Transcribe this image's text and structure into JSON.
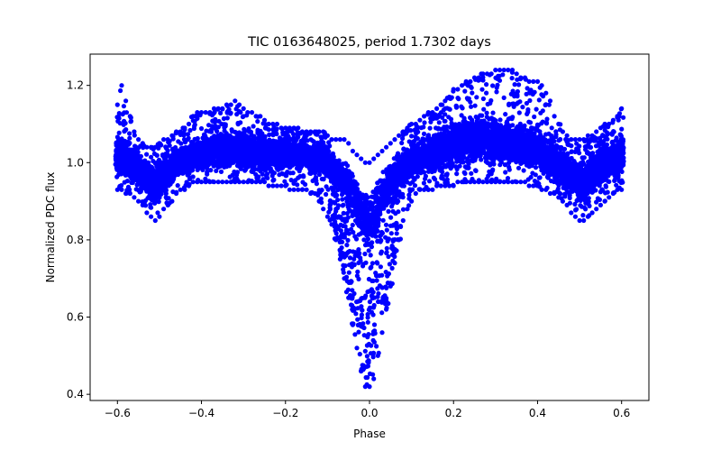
{
  "chart_data": {
    "type": "scatter",
    "title": "TIC 0163648025, period 1.7302 days",
    "xlabel": "Phase",
    "ylabel": "Normalized PDC flux",
    "xlim": [
      -0.665,
      0.665
    ],
    "ylim": [
      0.384,
      1.281
    ],
    "xticks": [
      -0.6,
      -0.4,
      -0.2,
      0.0,
      0.2,
      0.4,
      0.6
    ],
    "xtick_labels": [
      "−0.6",
      "−0.4",
      "−0.2",
      "0.0",
      "0.2",
      "0.4",
      "0.6"
    ],
    "yticks": [
      0.4,
      0.6,
      0.8,
      1.0,
      1.2
    ],
    "ytick_labels": [
      "0.4",
      "0.6",
      "0.8",
      "1.0",
      "1.2"
    ],
    "grid": false,
    "legend": "none",
    "marker_color": "#0000ff",
    "series": [
      {
        "x": [
          -0.6,
          -0.59,
          -0.58,
          -0.57,
          -0.56,
          -0.55,
          -0.54,
          -0.53,
          -0.52,
          -0.51,
          -0.5,
          -0.49,
          -0.48,
          -0.47,
          -0.46,
          -0.45,
          -0.44,
          -0.43,
          -0.42,
          -0.41,
          -0.4,
          -0.39,
          -0.38,
          -0.37,
          -0.36,
          -0.35,
          -0.34,
          -0.33,
          -0.32,
          -0.31,
          -0.3,
          -0.29,
          -0.28,
          -0.27,
          -0.26,
          -0.25,
          -0.24,
          -0.23,
          -0.22,
          -0.21,
          -0.2,
          -0.19,
          -0.18,
          -0.17,
          -0.16,
          -0.15,
          -0.14,
          -0.13,
          -0.12,
          -0.11,
          -0.1,
          -0.09,
          -0.08,
          -0.07,
          -0.06,
          -0.05,
          -0.04,
          -0.03,
          -0.02,
          -0.01,
          0.0,
          0.01,
          0.02,
          0.03,
          0.04,
          0.05,
          0.06,
          0.07,
          0.08,
          0.09,
          0.1,
          0.11,
          0.12,
          0.13,
          0.14,
          0.15,
          0.16,
          0.17,
          0.18,
          0.19,
          0.2,
          0.21,
          0.22,
          0.23,
          0.24,
          0.25,
          0.26,
          0.27,
          0.28,
          0.29,
          0.3,
          0.31,
          0.32,
          0.33,
          0.34,
          0.35,
          0.36,
          0.37,
          0.38,
          0.39,
          0.4,
          0.41,
          0.42,
          0.43,
          0.44,
          0.45,
          0.46,
          0.47,
          0.48,
          0.49,
          0.5,
          0.51,
          0.52,
          0.53,
          0.54,
          0.55,
          0.56,
          0.57,
          0.58,
          0.59,
          0.6
        ],
        "y_center": [
          1.02,
          1.02,
          1.01,
          1.0,
          0.99,
          0.98,
          0.97,
          0.96,
          0.95,
          0.95,
          0.96,
          0.97,
          0.98,
          0.99,
          1.0,
          1.0,
          1.01,
          1.01,
          1.02,
          1.02,
          1.02,
          1.03,
          1.03,
          1.03,
          1.03,
          1.03,
          1.03,
          1.03,
          1.03,
          1.03,
          1.03,
          1.03,
          1.03,
          1.03,
          1.03,
          1.03,
          1.02,
          1.02,
          1.02,
          1.02,
          1.02,
          1.02,
          1.02,
          1.02,
          1.02,
          1.02,
          1.01,
          1.01,
          1.01,
          1.01,
          1.0,
          0.99,
          0.98,
          0.97,
          0.96,
          0.94,
          0.92,
          0.9,
          0.88,
          0.86,
          0.86,
          0.87,
          0.89,
          0.91,
          0.93,
          0.95,
          0.96,
          0.98,
          0.99,
          1.0,
          1.0,
          1.01,
          1.01,
          1.02,
          1.02,
          1.02,
          1.03,
          1.03,
          1.04,
          1.04,
          1.05,
          1.05,
          1.05,
          1.06,
          1.06,
          1.06,
          1.06,
          1.06,
          1.06,
          1.06,
          1.06,
          1.05,
          1.05,
          1.05,
          1.05,
          1.05,
          1.05,
          1.04,
          1.04,
          1.04,
          1.03,
          1.03,
          1.02,
          1.02,
          1.01,
          1.0,
          0.99,
          0.98,
          0.97,
          0.96,
          0.95,
          0.95,
          0.96,
          0.97,
          0.98,
          0.99,
          1.0,
          1.0,
          1.01,
          1.01,
          1.02
        ],
        "y_low": [
          0.93,
          0.93,
          0.92,
          0.92,
          0.91,
          0.9,
          0.89,
          0.87,
          0.86,
          0.85,
          0.86,
          0.88,
          0.89,
          0.9,
          0.92,
          0.93,
          0.93,
          0.94,
          0.95,
          0.95,
          0.95,
          0.95,
          0.95,
          0.95,
          0.95,
          0.95,
          0.95,
          0.95,
          0.95,
          0.95,
          0.95,
          0.95,
          0.95,
          0.95,
          0.95,
          0.95,
          0.94,
          0.94,
          0.94,
          0.94,
          0.94,
          0.93,
          0.93,
          0.93,
          0.93,
          0.93,
          0.92,
          0.92,
          0.9,
          0.88,
          0.86,
          0.84,
          0.8,
          0.75,
          0.7,
          0.65,
          0.58,
          0.52,
          0.46,
          0.42,
          0.42,
          0.44,
          0.5,
          0.56,
          0.62,
          0.68,
          0.74,
          0.8,
          0.85,
          0.88,
          0.9,
          0.92,
          0.93,
          0.93,
          0.93,
          0.93,
          0.94,
          0.94,
          0.94,
          0.94,
          0.94,
          0.95,
          0.95,
          0.95,
          0.95,
          0.95,
          0.95,
          0.95,
          0.95,
          0.95,
          0.95,
          0.95,
          0.95,
          0.95,
          0.95,
          0.95,
          0.95,
          0.95,
          0.94,
          0.94,
          0.94,
          0.93,
          0.93,
          0.92,
          0.92,
          0.91,
          0.9,
          0.89,
          0.87,
          0.86,
          0.85,
          0.85,
          0.86,
          0.87,
          0.88,
          0.89,
          0.9,
          0.91,
          0.92,
          0.93,
          0.93
        ],
        "y_high": [
          1.15,
          1.2,
          1.16,
          1.12,
          1.08,
          1.06,
          1.05,
          1.04,
          1.04,
          1.04,
          1.05,
          1.06,
          1.06,
          1.07,
          1.08,
          1.08,
          1.09,
          1.1,
          1.12,
          1.13,
          1.13,
          1.13,
          1.13,
          1.14,
          1.14,
          1.14,
          1.15,
          1.15,
          1.16,
          1.15,
          1.14,
          1.13,
          1.13,
          1.12,
          1.12,
          1.11,
          1.1,
          1.1,
          1.1,
          1.09,
          1.09,
          1.09,
          1.09,
          1.09,
          1.08,
          1.08,
          1.08,
          1.08,
          1.08,
          1.08,
          1.07,
          1.06,
          1.06,
          1.06,
          1.06,
          1.05,
          1.03,
          1.02,
          1.01,
          1.0,
          1.0,
          1.01,
          1.02,
          1.03,
          1.04,
          1.05,
          1.06,
          1.07,
          1.08,
          1.09,
          1.1,
          1.1,
          1.11,
          1.12,
          1.13,
          1.13,
          1.14,
          1.15,
          1.16,
          1.17,
          1.19,
          1.19,
          1.2,
          1.21,
          1.21,
          1.22,
          1.22,
          1.23,
          1.23,
          1.23,
          1.24,
          1.24,
          1.24,
          1.24,
          1.24,
          1.23,
          1.22,
          1.22,
          1.21,
          1.21,
          1.21,
          1.2,
          1.18,
          1.16,
          1.12,
          1.1,
          1.08,
          1.07,
          1.06,
          1.06,
          1.06,
          1.06,
          1.07,
          1.07,
          1.08,
          1.09,
          1.1,
          1.1,
          1.11,
          1.12,
          1.14
        ]
      }
    ]
  }
}
